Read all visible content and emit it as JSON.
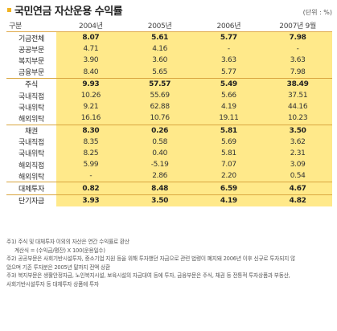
{
  "title": "국민연금 자산운용 수익률",
  "unit": "(단위 : %)",
  "header": {
    "label": "구분",
    "years": [
      "2004년",
      "2005년",
      "2006년",
      "2007년 9월"
    ]
  },
  "rows": [
    {
      "label": "기금전체",
      "level": 0,
      "values": [
        "8.07",
        "5.61",
        "5.77",
        "7.98"
      ]
    },
    {
      "label": "공공부문",
      "level": 1,
      "values": [
        "4.71",
        "4.16",
        "-",
        "-"
      ]
    },
    {
      "label": "복지부문",
      "level": 1,
      "values": [
        "3.90",
        "3.60",
        "3.63",
        "3.63"
      ]
    },
    {
      "label": "금융부문",
      "level": 1,
      "values": [
        "8.40",
        "5.65",
        "5.77",
        "7.98"
      ]
    },
    {
      "label": "주식",
      "level": 0,
      "values": [
        "9.93",
        "57.57",
        "5.49",
        "38.49"
      ]
    },
    {
      "label": "국내직접",
      "level": 2,
      "values": [
        "10.26",
        "55.69",
        "5.66",
        "37.51"
      ]
    },
    {
      "label": "국내위탁",
      "level": 2,
      "values": [
        "9.21",
        "62.88",
        "4.19",
        "44.16"
      ]
    },
    {
      "label": "해외위탁",
      "level": 2,
      "values": [
        "16.16",
        "10.76",
        "19.11",
        "10.23"
      ]
    },
    {
      "label": "채권",
      "level": 0,
      "values": [
        "8.30",
        "0.26",
        "5.81",
        "3.50"
      ]
    },
    {
      "label": "국내직접",
      "level": 2,
      "values": [
        "8.35",
        "0.58",
        "5.69",
        "3.62"
      ]
    },
    {
      "label": "국내위탁",
      "level": 2,
      "values": [
        "8.25",
        "0.40",
        "5.81",
        "2.31"
      ]
    },
    {
      "label": "해외직접",
      "level": 2,
      "values": [
        "5.99",
        "-5.19",
        "7.07",
        "3.09"
      ]
    },
    {
      "label": "해외위탁",
      "level": 2,
      "values": [
        "-",
        "2.86",
        "2.20",
        "0.54"
      ]
    },
    {
      "label": "대체투자",
      "level": 0,
      "values": [
        "0.82",
        "8.48",
        "6.59",
        "4.67"
      ]
    },
    {
      "label": "단기자금",
      "level": 0,
      "values": [
        "3.93",
        "3.50",
        "4.19",
        "4.82"
      ]
    }
  ],
  "footnotes": [
    "주1) 주식 및 대체투자 이외의 자산은 연간 수익률로 환산",
    "계산식 = (수익금/평잔) X 100(운용일수)",
    "주2) 공공부문은 사회기반시설투자, 중소기업 지원 등을 위해 투자했던 자금으로 관련 법령이 폐지돼 2006년 이후 신규로 투자되지 않",
    "았으며 기존 투자분은 2005년 말까지 전액 상환",
    "주3) 복지부문은 생활안정자금, 노인복지시설, 보육시설의 자금대여 등에 투자, 금융부문은 주식, 채권 등 전통적 투자상품과 부동산,",
    "사회기반시설투자 등 대체투자 상품에 투자"
  ],
  "colors": {
    "accent": "#f0b323",
    "highlight": "#ffe98a",
    "rule": "#d9a640"
  }
}
